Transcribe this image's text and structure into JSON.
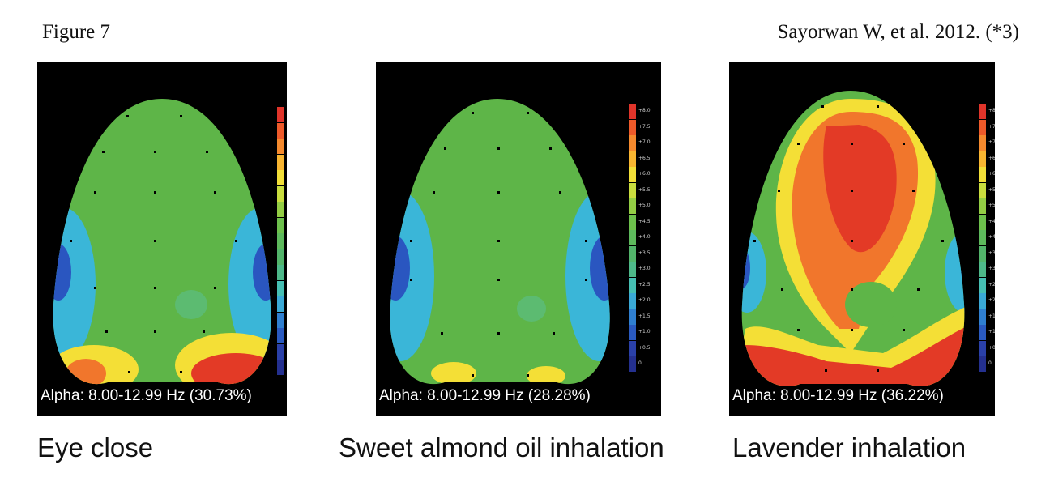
{
  "figure_label": "Figure 7",
  "citation": "Sayorwan W, et al. 2012. (*3)",
  "panels": [
    {
      "band_text": "Alpha: 8.00-12.99 Hz (30.73%)",
      "caption": "Eye close",
      "pattern": "baseline"
    },
    {
      "band_text": "Alpha: 8.00-12.99 Hz (28.28%)",
      "caption": "Sweet almond oil inhalation",
      "pattern": "baseline"
    },
    {
      "band_text": "Alpha: 8.00-12.99 Hz (36.22%)",
      "caption": "Lavender inhalation",
      "pattern": "elevated"
    }
  ],
  "colorbar": {
    "ticks": [
      "+8.0",
      "+7.5",
      "+7.0",
      "+6.5",
      "+6.0",
      "+5.5",
      "+5.0",
      "+4.5",
      "+4.0",
      "+3.5",
      "+3.0",
      "+2.5",
      "+2.0",
      "+1.5",
      "+1.0",
      "+0.5",
      "0"
    ],
    "colors": [
      "#e0342a",
      "#ee5a2a",
      "#f58a2e",
      "#f8b531",
      "#f2df38",
      "#c9dd3e",
      "#93cd44",
      "#6dc04c",
      "#5db95c",
      "#52b46a",
      "#4db889",
      "#46bfb3",
      "#3aa9d6",
      "#2f7fd0",
      "#2a5ac0",
      "#2a40a8",
      "#24308f"
    ]
  },
  "colors": {
    "background_map": "#5eb548",
    "blue_edge": "#2a56c0",
    "cyan_edge": "#3ab6d8",
    "red_hot": "#e33a26",
    "orange_hot": "#f1762c",
    "yellow_hot": "#f4df36"
  }
}
